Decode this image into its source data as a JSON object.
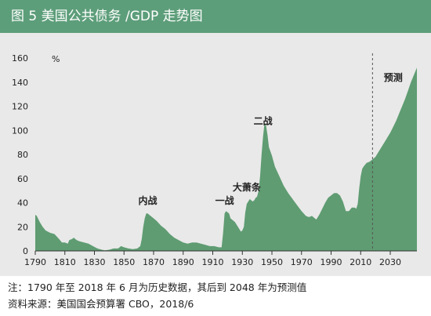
{
  "title": "图 5  美国公共债务 /GDP 走势图",
  "notes": {
    "note": "注：1790 年至 2018 年 6 月为历史数据，其后到 2048 年为预测值",
    "source": "资料来源：美国国会预算署 CBO，2018/6"
  },
  "colors": {
    "title_bg": "#5d9e7a",
    "panel_bg": "#e9e9e9",
    "area_fill": "#5f9c72",
    "divider": "#555555"
  },
  "chart_data": {
    "type": "area",
    "title": "",
    "xlabel": "",
    "ylabel": "%",
    "xlim": [
      1790,
      2048
    ],
    "ylim": [
      0,
      160
    ],
    "xticks": [
      1790,
      1810,
      1830,
      1850,
      1870,
      1890,
      1910,
      1930,
      1950,
      1970,
      1990,
      2010,
      2030
    ],
    "yticks": [
      0,
      20,
      40,
      60,
      80,
      100,
      120,
      140,
      160
    ],
    "grid": false,
    "forecast_start": 2018,
    "annotations": [
      {
        "text": "内战",
        "x": 1866,
        "y": 39
      },
      {
        "text": "一战",
        "x": 1918,
        "y": 39
      },
      {
        "text": "大萧条",
        "x": 1933,
        "y": 50
      },
      {
        "text": "二战",
        "x": 1944,
        "y": 105
      },
      {
        "text": "预测",
        "x": 2032,
        "y": 141
      }
    ],
    "series": [
      {
        "x": [
          1790,
          1791,
          1793,
          1795,
          1797,
          1800,
          1803,
          1806,
          1808,
          1810,
          1812,
          1813,
          1815,
          1816,
          1818,
          1820,
          1823,
          1826,
          1829,
          1832,
          1835,
          1837,
          1840,
          1843,
          1846,
          1848,
          1850,
          1853,
          1856,
          1859,
          1861,
          1862,
          1863,
          1864,
          1865,
          1866,
          1867,
          1869,
          1872,
          1875,
          1878,
          1881,
          1884,
          1887,
          1890,
          1893,
          1896,
          1899,
          1902,
          1905,
          1908,
          1911,
          1914,
          1916,
          1917,
          1918,
          1919,
          1920,
          1921,
          1922,
          1925,
          1928,
          1929,
          1930,
          1931,
          1932,
          1933,
          1934,
          1935,
          1936,
          1937,
          1938,
          1939,
          1940,
          1941,
          1942,
          1943,
          1944,
          1945,
          1946,
          1947,
          1948,
          1950,
          1952,
          1955,
          1958,
          1961,
          1964,
          1967,
          1970,
          1973,
          1975,
          1977,
          1980,
          1982,
          1984,
          1986,
          1988,
          1990,
          1992,
          1994,
          1996,
          1998,
          2000,
          2002,
          2004,
          2006,
          2007,
          2008,
          2009,
          2010,
          2011,
          2012,
          2014,
          2016,
          2018,
          2020,
          2022,
          2024,
          2026,
          2028,
          2030,
          2032,
          2034,
          2036,
          2038,
          2040,
          2042,
          2044,
          2046,
          2048
        ],
        "values": [
          30,
          29,
          24,
          20,
          17,
          15,
          14,
          10,
          7,
          7,
          6,
          9,
          10,
          11,
          9,
          8,
          7,
          6,
          4,
          2,
          1,
          0.5,
          1,
          2,
          2,
          4,
          3,
          2,
          1.5,
          2,
          4,
          10,
          20,
          27,
          31,
          31,
          30,
          28,
          25,
          21,
          18,
          14,
          11,
          9,
          7,
          6,
          7,
          7,
          6,
          5,
          4,
          4,
          3,
          3,
          15,
          31,
          33,
          32,
          31,
          27,
          24,
          18,
          16,
          17,
          20,
          32,
          39,
          41,
          43,
          42,
          41,
          42,
          44,
          45,
          50,
          62,
          80,
          95,
          106,
          104,
          96,
          86,
          79,
          70,
          62,
          54,
          48,
          43,
          38,
          33,
          29,
          28,
          29,
          26,
          30,
          35,
          40,
          44,
          46,
          48,
          48,
          46,
          41,
          33,
          33,
          36,
          36,
          35,
          39,
          52,
          62,
          68,
          70,
          73,
          74,
          76,
          78,
          82,
          86,
          90,
          94,
          98,
          103,
          108,
          114,
          120,
          126,
          133,
          140,
          146,
          152
        ]
      }
    ]
  }
}
